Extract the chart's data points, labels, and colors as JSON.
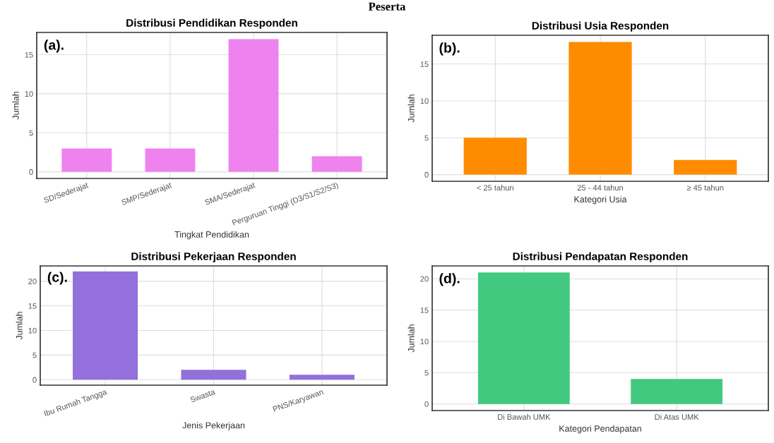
{
  "chart_data": [
    {
      "type": "bar",
      "title": "Distribusi Pendidikan Responden",
      "xlabel": "Tingkat Pendidikan",
      "ylabel": "Jumlah",
      "annotations": [
        "Peserta",
        "(a)."
      ],
      "categories": [
        "SD/Sederajat",
        "SMP/Sederajat",
        "SMA/Sederajat",
        "Perguruan Tinggi (D3/S1/S2/S3)"
      ],
      "values": [
        3,
        3,
        17,
        2
      ],
      "color": "#ee82ee",
      "ylim": [
        -0.85,
        17.85
      ],
      "yticks": [
        0,
        5,
        10,
        15
      ],
      "grid": true
    },
    {
      "type": "bar",
      "title": "Distribusi Usia Responden",
      "xlabel": "Kategori Usia",
      "ylabel": "Jumlah",
      "annotations": [
        "(b)."
      ],
      "categories": [
        "< 25 tahun",
        "25 - 44 tahun",
        "≥ 45 tahun"
      ],
      "values": [
        5,
        18,
        2
      ],
      "color": "#ff8c00",
      "ylim": [
        -0.9,
        18.9
      ],
      "yticks": [
        0,
        5,
        10,
        15
      ],
      "grid": true
    },
    {
      "type": "bar",
      "title": "Distribusi Pekerjaan Responden",
      "xlabel": "Jenis Pekerjaan",
      "ylabel": "Jumlah",
      "annotations": [
        "(c)."
      ],
      "categories": [
        "Ibu Rumah Tangga",
        "Swasta",
        "PNS/Karyawan"
      ],
      "values": [
        22,
        2,
        1
      ],
      "color": "#9370db",
      "ylim": [
        -1.1,
        23.1
      ],
      "yticks": [
        0,
        5,
        10,
        15,
        20
      ],
      "grid": true
    },
    {
      "type": "bar",
      "title": "Distribusi Pendapatan Responden",
      "xlabel": "Kategori Pendapatan",
      "ylabel": "Jumlah",
      "annotations": [
        "(d)."
      ],
      "categories": [
        "Di Bawah UMK",
        "Di Atas UMK"
      ],
      "values": [
        21,
        4
      ],
      "color": "#43c97f",
      "ylim": [
        -1.05,
        22.05
      ],
      "yticks": [
        0,
        5,
        10,
        15,
        20
      ],
      "grid": true
    }
  ]
}
